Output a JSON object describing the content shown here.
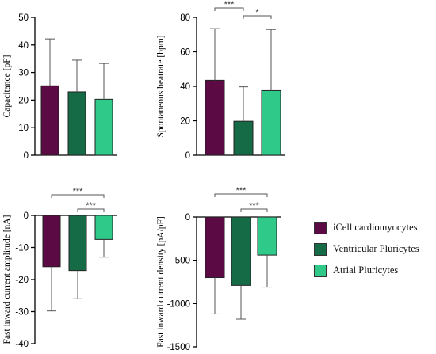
{
  "colors": {
    "series": [
      "#5b0a43",
      "#146b46",
      "#2fc98a"
    ],
    "axis": "#000000"
  },
  "legend": {
    "items": [
      {
        "label": "iCell cardiomyocytes",
        "color": "#5b0a43"
      },
      {
        "label": "Ventricular Pluricytes",
        "color": "#146b46"
      },
      {
        "label": "Atrial Pluricytes",
        "color": "#2fc98a"
      }
    ],
    "position": "right"
  },
  "chart_data": [
    {
      "type": "bar",
      "categories": [
        "iCell cardiomyocytes",
        "Ventricular Pluricytes",
        "Atrial Pluricytes"
      ],
      "values": [
        25.2,
        23.0,
        20.3
      ],
      "errors": [
        17.0,
        11.5,
        13.0
      ],
      "ylabel": "Capacitance [pF]",
      "ylim": [
        0,
        50
      ],
      "yticks": [
        0,
        10,
        20,
        30,
        40,
        50
      ],
      "significance": []
    },
    {
      "type": "bar",
      "categories": [
        "iCell cardiomyocytes",
        "Ventricular Pluricytes",
        "Atrial Pluricytes"
      ],
      "values": [
        43.5,
        19.7,
        37.5
      ],
      "errors": [
        30.0,
        20.0,
        35.5
      ],
      "ylabel": "Spontaneous beatrate [bpm]",
      "ylim": [
        0,
        80
      ],
      "yticks": [
        0,
        20,
        40,
        60,
        80
      ],
      "significance": [
        {
          "from": 0,
          "to": 1,
          "label": "***"
        },
        {
          "from": 1,
          "to": 2,
          "label": "*"
        }
      ]
    },
    {
      "type": "bar",
      "categories": [
        "iCell cardiomyocytes",
        "Ventricular Pluricytes",
        "Atrial Pluricytes"
      ],
      "values": [
        -16.0,
        -17.2,
        -7.5
      ],
      "errors": [
        13.8,
        8.8,
        5.5
      ],
      "ylabel": "Fast inward current amplitude [nA]",
      "ylim": [
        -40,
        0
      ],
      "yticks": [
        0,
        -10,
        -20,
        -30,
        -40
      ],
      "significance": [
        {
          "from": 0,
          "to": 2,
          "label": "***"
        },
        {
          "from": 1,
          "to": 2,
          "label": "***"
        }
      ]
    },
    {
      "type": "bar",
      "categories": [
        "iCell cardiomyocytes",
        "Ventricular Pluricytes",
        "Atrial Pluricytes"
      ],
      "values": [
        -700,
        -790,
        -440
      ],
      "errors": [
        420,
        390,
        370
      ],
      "ylabel": "Fast inward current density [pA/pF]",
      "ylim": [
        -1500,
        0
      ],
      "yticks": [
        0,
        -500,
        -1000,
        -1500
      ],
      "significance": [
        {
          "from": 0,
          "to": 2,
          "label": "***"
        },
        {
          "from": 1,
          "to": 2,
          "label": "***"
        }
      ]
    }
  ]
}
